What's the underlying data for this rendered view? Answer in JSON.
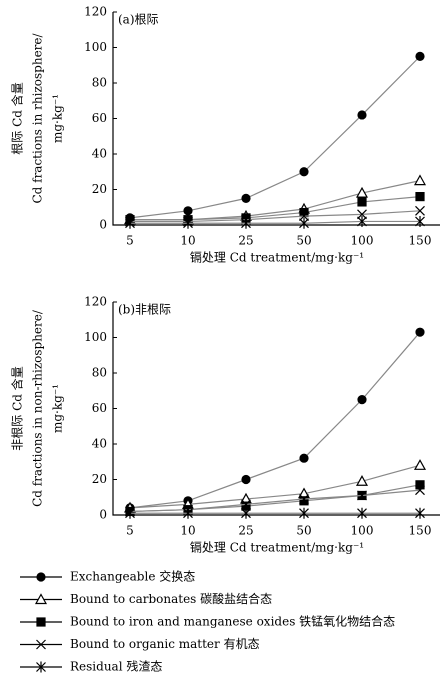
{
  "chart_data": [
    {
      "type": "line",
      "title": "(a)根际",
      "y_label": [
        "根际 Cd 含量",
        "Cd fractions in rhizosphere/",
        "mg·kg⁻¹"
      ],
      "x_label": "镉处理 Cd treatment/mg·kg⁻¹",
      "categories": [
        "5",
        "10",
        "25",
        "50",
        "100",
        "150"
      ],
      "ylim": [
        0,
        120
      ],
      "yticks": [
        0,
        20,
        40,
        60,
        80,
        100,
        120
      ],
      "series": [
        {
          "name": "Exchangeable 交换态",
          "marker": "circle",
          "color": "#888888",
          "values": [
            4,
            8,
            15,
            30,
            62,
            95
          ]
        },
        {
          "name": "Bound to carbonates 碳酸盐结合态",
          "marker": "triangle",
          "color": "#888888",
          "values": [
            3,
            3,
            5,
            9,
            18,
            25
          ]
        },
        {
          "name": "Bound to iron and manganese oxides 铁锰氧化物结合态",
          "marker": "square",
          "color": "#888888",
          "values": [
            3,
            3,
            4,
            7,
            13,
            16
          ]
        },
        {
          "name": "Bound to organic matter 有机态",
          "marker": "x",
          "color": "#888888",
          "values": [
            2,
            2,
            3,
            5,
            6,
            8
          ]
        },
        {
          "name": "Residual 残渣态",
          "marker": "asterisk",
          "color": "#888888",
          "values": [
            1,
            1,
            1,
            1,
            2,
            2
          ]
        }
      ]
    },
    {
      "type": "line",
      "title": "(b)非根际",
      "y_label": [
        "非根际 Cd 含量",
        "Cd fractions in non-rhizosphere/",
        "mg·kg⁻¹"
      ],
      "x_label": "镉处理 Cd treatment/mg·kg⁻¹",
      "categories": [
        "5",
        "10",
        "25",
        "50",
        "100",
        "150"
      ],
      "ylim": [
        0,
        120
      ],
      "yticks": [
        0,
        20,
        40,
        60,
        80,
        100,
        120
      ],
      "series": [
        {
          "marker": "circle",
          "color": "#888888",
          "values": [
            4,
            8,
            20,
            32,
            65,
            103
          ]
        },
        {
          "marker": "triangle",
          "color": "#888888",
          "values": [
            4,
            6,
            9,
            12,
            19,
            28
          ]
        },
        {
          "marker": "square",
          "color": "#888888",
          "values": [
            2,
            3,
            5,
            8,
            11,
            17
          ]
        },
        {
          "marker": "x",
          "color": "#888888",
          "values": [
            2,
            3,
            6,
            9,
            11,
            14
          ]
        },
        {
          "marker": "asterisk",
          "color": "#888888",
          "values": [
            1,
            1,
            1,
            1,
            1,
            1
          ]
        }
      ]
    }
  ]
}
